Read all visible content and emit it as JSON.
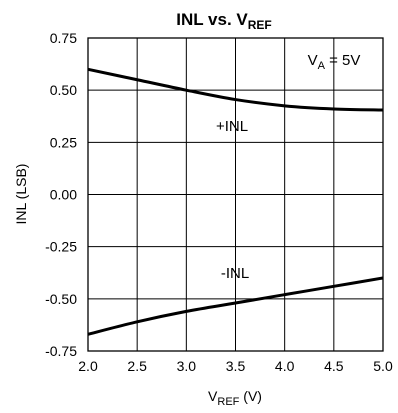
{
  "chart_data": {
    "type": "line",
    "title": {
      "main": "INL vs. V",
      "sub": "REF"
    },
    "xlabel": {
      "main": "V",
      "sub": "REF",
      "suffix": " (V)"
    },
    "ylabel": "INL (LSB)",
    "xlim": [
      2.0,
      5.0
    ],
    "ylim": [
      -0.75,
      0.75
    ],
    "x_ticks": [
      "2.0",
      "2.5",
      "3.0",
      "3.5",
      "4.0",
      "4.5",
      "5.0"
    ],
    "y_ticks": [
      "0.75",
      "0.50",
      "0.25",
      "0.00",
      "-0.25",
      "-0.50",
      "-0.75"
    ],
    "grid": true,
    "condition": {
      "main": "V",
      "sub": "A",
      "suffix": " = 5V"
    },
    "series": [
      {
        "name": "+INL",
        "x": [
          2.0,
          2.5,
          3.0,
          3.5,
          4.0,
          4.5,
          5.0
        ],
        "values": [
          0.6,
          0.55,
          0.5,
          0.455,
          0.425,
          0.41,
          0.405
        ]
      },
      {
        "name": "-INL",
        "x": [
          2.0,
          2.5,
          3.0,
          3.5,
          4.0,
          4.5,
          5.0
        ],
        "values": [
          -0.67,
          -0.61,
          -0.56,
          -0.52,
          -0.48,
          -0.44,
          -0.4
        ]
      }
    ]
  }
}
